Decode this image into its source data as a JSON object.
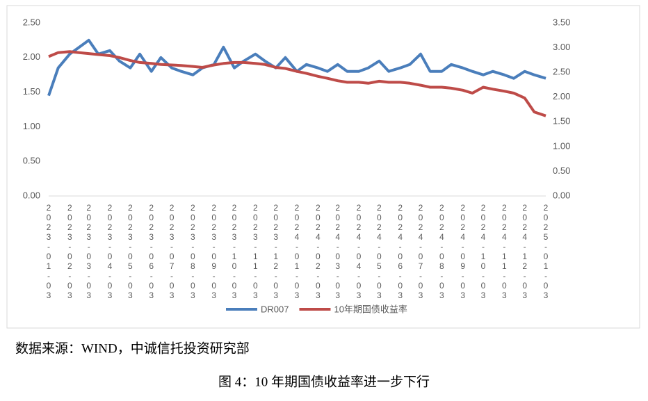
{
  "chart_data": {
    "type": "line",
    "x": [
      "2023-01-03",
      "2023-01-17",
      "2023-02-03",
      "2023-02-17",
      "2023-03-03",
      "2023-03-17",
      "2023-04-03",
      "2023-04-17",
      "2023-05-03",
      "2023-05-17",
      "2023-06-03",
      "2023-06-17",
      "2023-07-03",
      "2023-07-17",
      "2023-08-03",
      "2023-08-17",
      "2023-09-03",
      "2023-09-17",
      "2023-10-03",
      "2023-10-17",
      "2023-11-03",
      "2023-11-17",
      "2023-12-03",
      "2023-12-17",
      "2024-01-03",
      "2024-01-17",
      "2024-02-03",
      "2024-02-17",
      "2024-03-03",
      "2024-03-17",
      "2024-04-03",
      "2024-04-17",
      "2024-05-03",
      "2024-05-17",
      "2024-06-03",
      "2024-06-17",
      "2024-07-03",
      "2024-07-17",
      "2024-08-03",
      "2024-08-17",
      "2024-09-03",
      "2024-09-17",
      "2024-10-03",
      "2024-10-17",
      "2024-11-03",
      "2024-11-17",
      "2024-12-03",
      "2024-12-17",
      "2025-01-03"
    ],
    "xlim": [
      "2023-01-03",
      "2025-01-03"
    ],
    "xticks": [
      "2023-01-03",
      "2023-02-03",
      "2023-03-03",
      "2023-04-03",
      "2023-05-03",
      "2023-06-03",
      "2023-07-03",
      "2023-08-03",
      "2023-09-03",
      "2023-10-03",
      "2023-11-03",
      "2023-12-03",
      "2024-01-03",
      "2024-02-03",
      "2024-03-03",
      "2024-04-03",
      "2024-05-03",
      "2024-06-03",
      "2024-07-03",
      "2024-08-03",
      "2024-09-03",
      "2024-10-03",
      "2024-11-03",
      "2024-12-03",
      "2025-01-03"
    ],
    "ylim": [
      0,
      2.5
    ],
    "yticks": [
      {
        "value": 0,
        "label": "0.00"
      },
      {
        "value": 0.5,
        "label": "0.50"
      },
      {
        "value": 1,
        "label": "1.00"
      },
      {
        "value": 1.5,
        "label": "1.50"
      },
      {
        "value": 2,
        "label": "2.00"
      },
      {
        "value": 2.5,
        "label": "2.50"
      }
    ],
    "y2lim": [
      0,
      3.5
    ],
    "y2ticks": [
      {
        "value": 0,
        "label": "0.00"
      },
      {
        "value": 0.5,
        "label": "0.50"
      },
      {
        "value": 1,
        "label": "1.00"
      },
      {
        "value": 1.5,
        "label": "1.50"
      },
      {
        "value": 2,
        "label": "2.00"
      },
      {
        "value": 2.5,
        "label": "2.50"
      },
      {
        "value": 3,
        "label": "3.00"
      },
      {
        "value": 3.5,
        "label": "3.50"
      }
    ],
    "series": [
      {
        "name": "DR007",
        "color": "#4a7ebb",
        "values": [
          1.45,
          1.85,
          2.05,
          2.15,
          2.25,
          2.05,
          2.1,
          1.95,
          1.85,
          2.05,
          1.8,
          2.0,
          1.85,
          1.8,
          1.75,
          1.85,
          1.9,
          2.15,
          1.85,
          1.95,
          2.05,
          1.95,
          1.85,
          2.0,
          1.8,
          1.9,
          1.85,
          1.8,
          1.9,
          1.8,
          1.8,
          1.85,
          1.95,
          1.8,
          1.85,
          1.9,
          2.05,
          1.8,
          1.8,
          1.9,
          1.85,
          1.8,
          1.75,
          1.8,
          1.75,
          1.7,
          1.8,
          1.75,
          1.7
        ]
      },
      {
        "name": "10年期国债收益率",
        "color": "#be4b48",
        "axis": "y2",
        "values": [
          2.82,
          2.9,
          2.92,
          2.9,
          2.88,
          2.86,
          2.84,
          2.8,
          2.74,
          2.7,
          2.68,
          2.66,
          2.65,
          2.64,
          2.62,
          2.6,
          2.65,
          2.68,
          2.7,
          2.7,
          2.68,
          2.66,
          2.6,
          2.58,
          2.52,
          2.48,
          2.42,
          2.38,
          2.33,
          2.3,
          2.3,
          2.28,
          2.32,
          2.3,
          2.3,
          2.28,
          2.24,
          2.2,
          2.2,
          2.18,
          2.14,
          2.08,
          2.2,
          2.16,
          2.12,
          2.08,
          1.98,
          1.7,
          1.62
        ]
      }
    ]
  },
  "source": "数据来源：WIND，中诚信托投资研究部",
  "caption": "图 4：10 年期国债收益率进一步下行"
}
